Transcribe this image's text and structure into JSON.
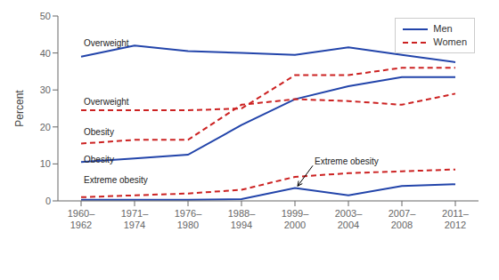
{
  "chart_data": {
    "type": "line",
    "ylabel": "Percent",
    "categories": [
      "1960–\n1962",
      "1971–\n1974",
      "1976–\n1980",
      "1988–\n1994",
      "1999–\n2000",
      "2003–\n2004",
      "2007–\n2008",
      "2011–\n2012"
    ],
    "series": [
      {
        "name": "Men",
        "color": "#2244aa",
        "line_style": "solid",
        "values": [
          39.0,
          42.0,
          40.5,
          40.0,
          39.5,
          41.5,
          39.5,
          37.5
        ]
      },
      {
        "name": "Men",
        "color": "#2244aa",
        "line_style": "solid",
        "values": [
          10.5,
          11.5,
          12.5,
          20.5,
          27.5,
          31.0,
          33.5,
          33.5
        ]
      },
      {
        "name": "Men",
        "color": "#2244aa",
        "line_style": "solid",
        "values": [
          0.3,
          0.3,
          0.3,
          0.5,
          3.5,
          1.5,
          4.0,
          4.5
        ]
      },
      {
        "name": "Women",
        "color": "#cc2222",
        "line_style": "dashed",
        "values": [
          24.5,
          24.5,
          24.5,
          25.0,
          34.0,
          34.0,
          36.0,
          36.0
        ]
      },
      {
        "name": "Women",
        "color": "#cc2222",
        "line_style": "dashed",
        "values": [
          15.5,
          16.5,
          16.5,
          26.0,
          27.5,
          27.0,
          26.0,
          29.0
        ]
      },
      {
        "name": "Women",
        "color": "#cc2222",
        "line_style": "dashed",
        "values": [
          1.0,
          1.5,
          2.0,
          3.0,
          6.5,
          7.5,
          8.0,
          8.5
        ]
      }
    ],
    "ylim": [
      0,
      50
    ],
    "yticks": [
      0,
      10,
      20,
      30,
      40,
      50
    ],
    "grid": false,
    "legend": "upper right",
    "annotations": [
      {
        "text": "Overweight",
        "x": "1960–\n1962",
        "y": 42.5
      },
      {
        "text": "Overweight",
        "x": "1960–\n1962",
        "y": 26.5
      },
      {
        "text": "Obesity",
        "x": "1960–\n1962",
        "y": 18.5
      },
      {
        "text": "Obesity",
        "x": "1960–\n1962",
        "y": 11.0
      },
      {
        "text": "Extreme obesity",
        "x": "1960–\n1962",
        "y": 5.5
      },
      {
        "text": "Extreme obesity",
        "x": "1999–\n2000",
        "y": 10.5,
        "arrow_y": 4.0
      }
    ]
  }
}
